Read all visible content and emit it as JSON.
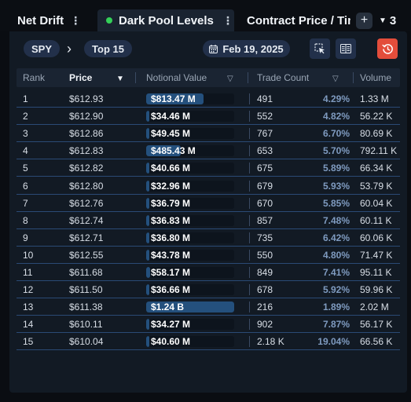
{
  "tabs": {
    "net_drift": "Net Drift",
    "active": "Dark Pool Levels",
    "contract": "Contract Price / Time",
    "kebab": "⋮",
    "add": "+",
    "overflow_count": "3"
  },
  "toolbar": {
    "ticker": "SPY",
    "separator": "›",
    "filter": "Top 15",
    "date": "Feb 19, 2025",
    "icons": [
      "calendar-icon",
      "pointer-select-icon",
      "list-columns-icon",
      "history-icon"
    ],
    "colors": {
      "accent": "#22304a",
      "reset": "#e34d3b",
      "live_dot": "#34d058"
    }
  },
  "table": {
    "columns": [
      "Rank",
      "Price",
      "Notional Value",
      "Trade Count",
      "Volume"
    ],
    "sort_column": "Price",
    "bar_color": "#24507d",
    "rows": [
      {
        "rank": "1",
        "price": "$612.93",
        "notional": "$813.47 M",
        "notional_fraction": 0.65,
        "count": "491",
        "pct": "4.29%",
        "volume": "1.33 M"
      },
      {
        "rank": "2",
        "price": "$612.90",
        "notional": "$34.46 M",
        "notional_fraction": 0.028,
        "count": "552",
        "pct": "4.82%",
        "volume": "56.22 K"
      },
      {
        "rank": "3",
        "price": "$612.86",
        "notional": "$49.45 M",
        "notional_fraction": 0.04,
        "count": "767",
        "pct": "6.70%",
        "volume": "80.69 K"
      },
      {
        "rank": "4",
        "price": "$612.83",
        "notional": "$485.43 M",
        "notional_fraction": 0.39,
        "count": "653",
        "pct": "5.70%",
        "volume": "792.11 K"
      },
      {
        "rank": "5",
        "price": "$612.82",
        "notional": "$40.66 M",
        "notional_fraction": 0.033,
        "count": "675",
        "pct": "5.89%",
        "volume": "66.34 K"
      },
      {
        "rank": "6",
        "price": "$612.80",
        "notional": "$32.96 M",
        "notional_fraction": 0.027,
        "count": "679",
        "pct": "5.93%",
        "volume": "53.79 K"
      },
      {
        "rank": "7",
        "price": "$612.76",
        "notional": "$36.79 M",
        "notional_fraction": 0.03,
        "count": "670",
        "pct": "5.85%",
        "volume": "60.04 K"
      },
      {
        "rank": "8",
        "price": "$612.74",
        "notional": "$36.83 M",
        "notional_fraction": 0.03,
        "count": "857",
        "pct": "7.48%",
        "volume": "60.11 K"
      },
      {
        "rank": "9",
        "price": "$612.71",
        "notional": "$36.80 M",
        "notional_fraction": 0.03,
        "count": "735",
        "pct": "6.42%",
        "volume": "60.06 K"
      },
      {
        "rank": "10",
        "price": "$612.55",
        "notional": "$43.78 M",
        "notional_fraction": 0.035,
        "count": "550",
        "pct": "4.80%",
        "volume": "71.47 K"
      },
      {
        "rank": "11",
        "price": "$611.68",
        "notional": "$58.17 M",
        "notional_fraction": 0.047,
        "count": "849",
        "pct": "7.41%",
        "volume": "95.11 K"
      },
      {
        "rank": "12",
        "price": "$611.50",
        "notional": "$36.66 M",
        "notional_fraction": 0.03,
        "count": "678",
        "pct": "5.92%",
        "volume": "59.96 K"
      },
      {
        "rank": "13",
        "price": "$611.38",
        "notional": "$1.24 B",
        "notional_fraction": 1.0,
        "count": "216",
        "pct": "1.89%",
        "volume": "2.02 M"
      },
      {
        "rank": "14",
        "price": "$610.11",
        "notional": "$34.27 M",
        "notional_fraction": 0.028,
        "count": "902",
        "pct": "7.87%",
        "volume": "56.17 K"
      },
      {
        "rank": "15",
        "price": "$610.04",
        "notional": "$40.60 M",
        "notional_fraction": 0.033,
        "count": "2.18 K",
        "pct": "19.04%",
        "volume": "66.56 K"
      }
    ]
  }
}
